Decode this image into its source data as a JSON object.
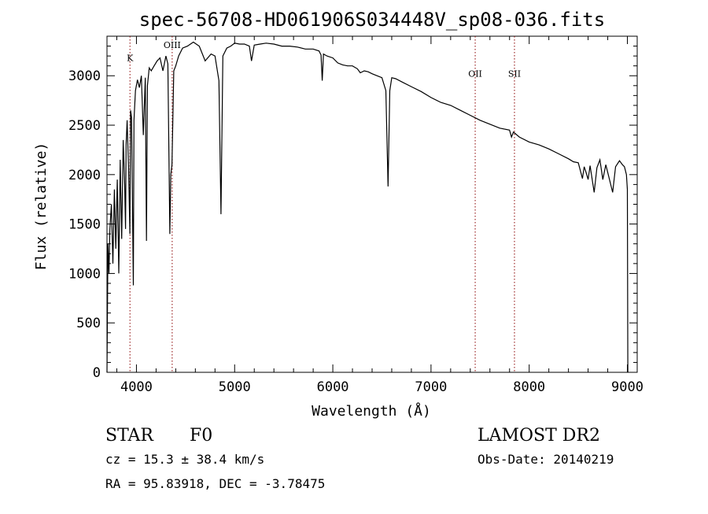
{
  "chart_data": {
    "type": "line",
    "title": "spec-56708-HD061906S034448V_sp08-036.fits",
    "xlabel": "Wavelength (Å)",
    "ylabel": "Flux (relative)",
    "xlim": [
      3700,
      9100
    ],
    "ylim": [
      0,
      3400
    ],
    "xticks": [
      4000,
      5000,
      6000,
      7000,
      8000,
      9000
    ],
    "yticks": [
      0,
      500,
      1000,
      1500,
      2000,
      2500,
      3000
    ],
    "grid": false,
    "line_color": "#000000",
    "marker_color": "#8b0000",
    "series": [
      {
        "x": [
          3700,
          3710,
          3720,
          3730,
          3745,
          3760,
          3775,
          3790,
          3805,
          3820,
          3835,
          3850,
          3865,
          3880,
          3889,
          3895,
          3905,
          3920,
          3933,
          3940,
          3950,
          3968,
          3975,
          3990,
          4010,
          4030,
          4050,
          4070,
          4090,
          4102,
          4112,
          4130,
          4150,
          4180,
          4210,
          4240,
          4270,
          4300,
          4320,
          4340,
          4350,
          4362,
          4380,
          4400,
          4430,
          4470,
          4520,
          4580,
          4640,
          4700,
          4760,
          4800,
          4840,
          4861,
          4880,
          4920,
          4960,
          5000,
          5050,
          5100,
          5150,
          5172,
          5200,
          5260,
          5320,
          5400,
          5480,
          5560,
          5640,
          5720,
          5800,
          5860,
          5880,
          5892,
          5905,
          5940,
          6000,
          6050,
          6100,
          6150,
          6200,
          6250,
          6280,
          6320,
          6360,
          6400,
          6450,
          6500,
          6540,
          6563,
          6580,
          6600,
          6640,
          6700,
          6800,
          6900,
          7000,
          7100,
          7200,
          7300,
          7400,
          7500,
          7600,
          7700,
          7800,
          7820,
          7840,
          7900,
          8000,
          8100,
          8200,
          8300,
          8400,
          8450,
          8500,
          8542,
          8560,
          8580,
          8600,
          8620,
          8662,
          8690,
          8720,
          8750,
          8780,
          8800,
          8850,
          8880,
          8920,
          8950,
          8970,
          8990,
          9000,
          9005
        ],
        "y": [
          0,
          1300,
          1000,
          1450,
          1700,
          1100,
          1850,
          1250,
          1950,
          1000,
          2150,
          1350,
          2350,
          1900,
          1450,
          2300,
          2550,
          2050,
          1400,
          2650,
          2580,
          880,
          2550,
          2850,
          2960,
          2880,
          3000,
          2400,
          2980,
          1330,
          2900,
          3080,
          3050,
          3100,
          3150,
          3180,
          3050,
          3200,
          3120,
          1400,
          2000,
          2100,
          3050,
          3100,
          3200,
          3280,
          3300,
          3340,
          3300,
          3150,
          3220,
          3200,
          2950,
          1600,
          3200,
          3280,
          3300,
          3330,
          3320,
          3320,
          3300,
          3150,
          3310,
          3320,
          3330,
          3320,
          3300,
          3300,
          3290,
          3270,
          3270,
          3250,
          3210,
          2950,
          3220,
          3200,
          3180,
          3130,
          3110,
          3100,
          3100,
          3070,
          3030,
          3050,
          3040,
          3020,
          3000,
          2980,
          2850,
          1880,
          2850,
          2980,
          2970,
          2940,
          2890,
          2840,
          2780,
          2730,
          2700,
          2650,
          2600,
          2550,
          2510,
          2470,
          2450,
          2380,
          2430,
          2380,
          2330,
          2300,
          2260,
          2210,
          2160,
          2130,
          2120,
          1960,
          2080,
          2020,
          1950,
          2090,
          1820,
          2070,
          2150,
          1950,
          2100,
          2020,
          1820,
          2080,
          2140,
          2100,
          2080,
          2000,
          1850,
          0
        ]
      }
    ],
    "markers": [
      {
        "label": "K",
        "x": 3934,
        "label_y": 3150
      },
      {
        "label": "OIII",
        "x": 4364,
        "label_y": 3280
      },
      {
        "label": "OII",
        "x": 7450,
        "label_y": 2990
      },
      {
        "label": "SII",
        "x": 7850,
        "label_y": 2990
      }
    ]
  },
  "footer": {
    "object_type": "STAR",
    "subclass": "F0",
    "survey": "LAMOST DR2",
    "cz": "cz = 15.3 ± 38.4 km/s",
    "obs_date": "Obs-Date: 20140219",
    "coords": "RA =  95.83918, DEC =  -3.78475"
  }
}
